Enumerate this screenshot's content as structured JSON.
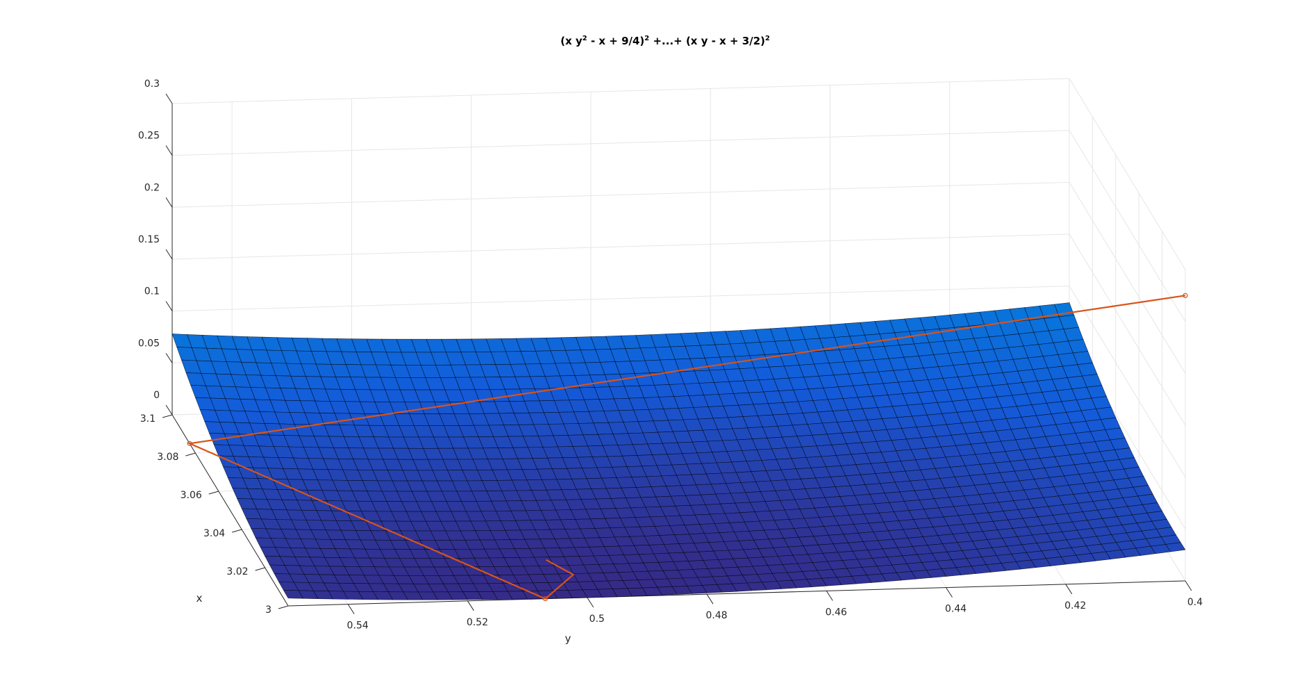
{
  "chart_data": {
    "type": "surface",
    "title_parts": {
      "p1": "(x y",
      "s1": "2",
      "p2": " - x + 9/4)",
      "s2": "2",
      "p3": " +...+ (x y - x + 3/2)",
      "s3": "2"
    },
    "xlabel": "x",
    "ylabel": "y",
    "zlabel": "",
    "x_range": [
      3.0,
      3.1
    ],
    "y_range": [
      0.4,
      0.55
    ],
    "z_range": [
      0,
      0.3
    ],
    "x_ticks": [
      "3",
      "3.02",
      "3.04",
      "3.06",
      "3.08",
      "3.1"
    ],
    "y_ticks": [
      "0.54",
      "0.52",
      "0.5",
      "0.48",
      "0.46",
      "0.44",
      "0.42",
      "0.4"
    ],
    "z_ticks": [
      "0",
      "0.05",
      "0.1",
      "0.15",
      "0.2",
      "0.25",
      "0.3"
    ],
    "colormap": "parula",
    "grid": true,
    "minimum": {
      "x": 3.0,
      "y": 0.5,
      "z": 0.0
    },
    "descent_path": {
      "color": "#d95319",
      "points": [
        {
          "x": 3.0,
          "y": 0.4,
          "z": 0.275
        },
        {
          "x": 3.085,
          "y": 0.55,
          "z": 0.0
        },
        {
          "x": 3.0,
          "y": 0.507,
          "z": 0.0
        },
        {
          "x": 3.012,
          "y": 0.5,
          "z": 0.0
        },
        {
          "x": 3.02,
          "y": 0.503,
          "z": 0.0
        }
      ]
    }
  }
}
